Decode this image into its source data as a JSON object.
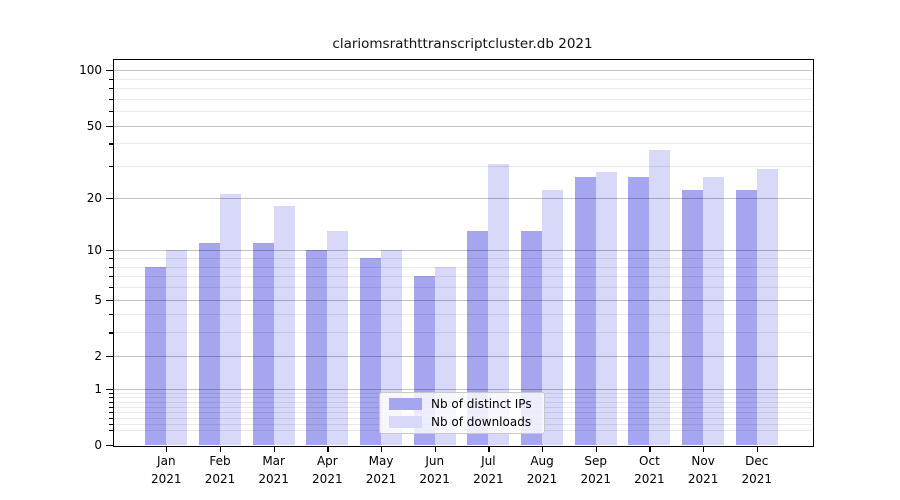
{
  "colors": {
    "ips_bar": "#a5a5f0",
    "downloads_bar": "#d8d8f8",
    "major_grid": "rgba(0,0,0,0.24)",
    "minor_grid": "rgba(0,0,0,0.085)",
    "axis": "#000000"
  },
  "legend": {
    "items": [
      {
        "label": "Nb of distinct IPs",
        "series": "ips"
      },
      {
        "label": "Nb of downloads",
        "series": "downloads"
      }
    ]
  },
  "chart_data": {
    "type": "bar",
    "title": "clariomsrathttranscriptcluster.db 2021",
    "xlabel": "",
    "ylabel": "",
    "categories": [
      "Jan 2021",
      "Feb 2021",
      "Mar 2021",
      "Apr 2021",
      "May 2021",
      "Jun 2021",
      "Jul 2021",
      "Aug 2021",
      "Sep 2021",
      "Oct 2021",
      "Nov 2021",
      "Dec 2021"
    ],
    "x_tick_month": [
      "Jan",
      "Feb",
      "Mar",
      "Apr",
      "May",
      "Jun",
      "Jul",
      "Aug",
      "Sep",
      "Oct",
      "Nov",
      "Dec"
    ],
    "x_tick_year": "2021",
    "series": [
      {
        "name": "Nb of distinct IPs",
        "values": [
          8,
          11,
          11,
          10,
          9,
          7,
          13,
          13,
          26,
          26,
          22,
          22
        ]
      },
      {
        "name": "Nb of downloads",
        "values": [
          10,
          21,
          18,
          13,
          10,
          8,
          31,
          22,
          28,
          37,
          26,
          29
        ]
      }
    ],
    "yscale": "log1p",
    "ylim": [
      0,
      115
    ],
    "y_major_ticks": [
      0,
      1,
      2,
      5,
      10,
      20,
      50,
      100
    ],
    "y_minor_ticks": [
      0.2,
      0.3,
      0.4,
      0.5,
      0.6,
      0.7,
      0.8,
      0.9,
      3,
      4,
      6,
      7,
      8,
      9,
      30,
      40,
      60,
      70,
      80,
      90
    ],
    "grid": "on",
    "legend_position": "lower center inside"
  }
}
